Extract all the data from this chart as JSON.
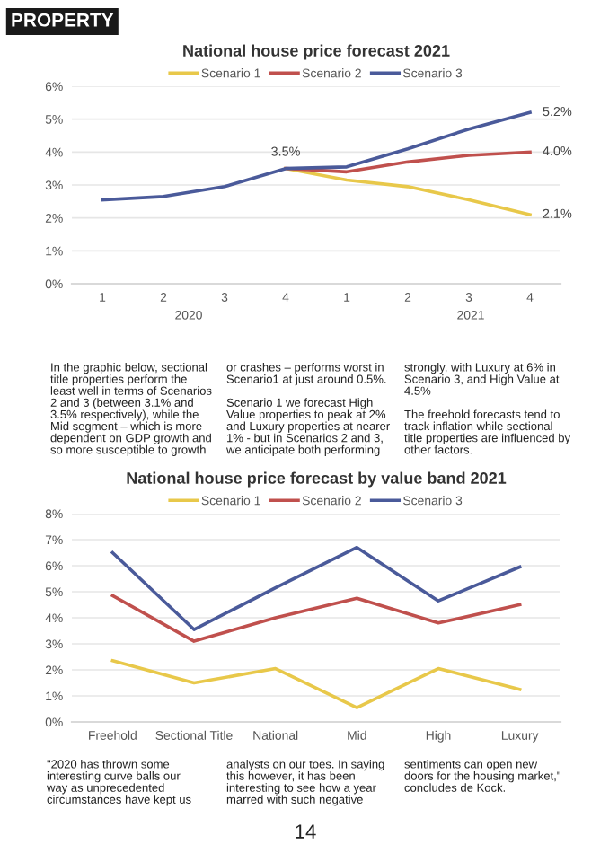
{
  "chart_data": [
    {
      "type": "line",
      "title": "National house price forecast 2021",
      "categories": [
        "1",
        "2",
        "3",
        "4",
        "1",
        "2",
        "3",
        "4"
      ],
      "series": [
        {
          "name": "Scenario 1",
          "color": "#e8c84a",
          "values": [
            null,
            null,
            null,
            3.5,
            3.15,
            2.95,
            2.55,
            2.1
          ],
          "value_labels": [
            null,
            null,
            null,
            null,
            null,
            null,
            null,
            "2.1%"
          ]
        },
        {
          "name": "Scenario 2",
          "color": "#c0504d",
          "values": [
            null,
            null,
            null,
            3.5,
            3.4,
            3.7,
            3.9,
            4.0
          ],
          "value_labels": [
            null,
            null,
            null,
            null,
            null,
            null,
            null,
            "4.0%"
          ]
        },
        {
          "name": "Scenario 3",
          "color": "#4a5a9a",
          "values": [
            2.55,
            2.65,
            2.95,
            3.5,
            3.55,
            4.1,
            4.7,
            5.2
          ],
          "value_labels": [
            null,
            null,
            null,
            "3.5%",
            null,
            null,
            null,
            "5.2%"
          ]
        }
      ],
      "ylim": [
        0,
        6
      ],
      "yticks": [
        {
          "value": 0,
          "label": "0%"
        },
        {
          "value": 1,
          "label": "1%"
        },
        {
          "value": 2,
          "label": "2%"
        },
        {
          "value": 3,
          "label": "3%"
        },
        {
          "value": 4,
          "label": "4%"
        },
        {
          "value": 5,
          "label": "5%"
        },
        {
          "value": 6,
          "label": "6%"
        }
      ],
      "grid": "y",
      "legend": "top",
      "annotations": [
        "2020",
        "2021",
        "PROPERTY",
        "In the graphic below, sectional\ntitle properties perform the\nleast well in terms of Scenarios\n2 and 3 (between 3.1% and\n3.5% respectively), while the\nMid segment – which is more\ndependent on GDP growth and\nso more susceptible to growth",
        "or crashes – performs worst in\nScenario1 at just around 0.5%.\n\nScenario 1 we forecast High\nValue properties to peak at 2%\nand Luxury properties at nearer\n1% - but in Scenarios 2 and 3,\nwe anticipate both performing",
        "strongly, with Luxury at 6% in\nScenario 3, and High Value at\n4.5%\n\nThe freehold forecasts tend to\ntrack inflation while sectional\ntitle properties are influenced by\nother factors."
      ]
    },
    {
      "type": "line",
      "title": "National house price forecast by value band 2021",
      "categories": [
        "Freehold",
        "Sectional Title",
        "National",
        "Mid",
        "High",
        "Luxury"
      ],
      "series": [
        {
          "name": "Scenario 1",
          "color": "#e8c84a",
          "values": [
            2.35,
            1.5,
            2.05,
            0.55,
            2.05,
            1.25
          ]
        },
        {
          "name": "Scenario 2",
          "color": "#c0504d",
          "values": [
            4.85,
            3.1,
            4.0,
            4.75,
            3.8,
            4.5
          ]
        },
        {
          "name": "Scenario 3",
          "color": "#4a5a9a",
          "values": [
            6.5,
            3.55,
            5.15,
            6.7,
            4.65,
            5.95
          ]
        }
      ],
      "ylim": [
        0,
        8
      ],
      "yticks": [
        {
          "value": 0,
          "label": "0%"
        },
        {
          "value": 1,
          "label": "1%"
        },
        {
          "value": 2,
          "label": "2%"
        },
        {
          "value": 3,
          "label": "3%"
        },
        {
          "value": 4,
          "label": "4%"
        },
        {
          "value": 5,
          "label": "5%"
        },
        {
          "value": 6,
          "label": "6%"
        },
        {
          "value": 7,
          "label": "7%"
        },
        {
          "value": 8,
          "label": "8%"
        }
      ],
      "grid": "y",
      "legend": "top",
      "annotations": [
        "\"2020 has thrown some\ninteresting curve balls our\nway as unprecedented\ncircumstances have kept us",
        "analysts on our toes. In saying\nthis however, it has been\ninteresting to see how a year\nmarred with such negative",
        "sentiments can open new\ndoors for the housing market,\"\nconcludes de Kock.",
        "14"
      ]
    }
  ]
}
